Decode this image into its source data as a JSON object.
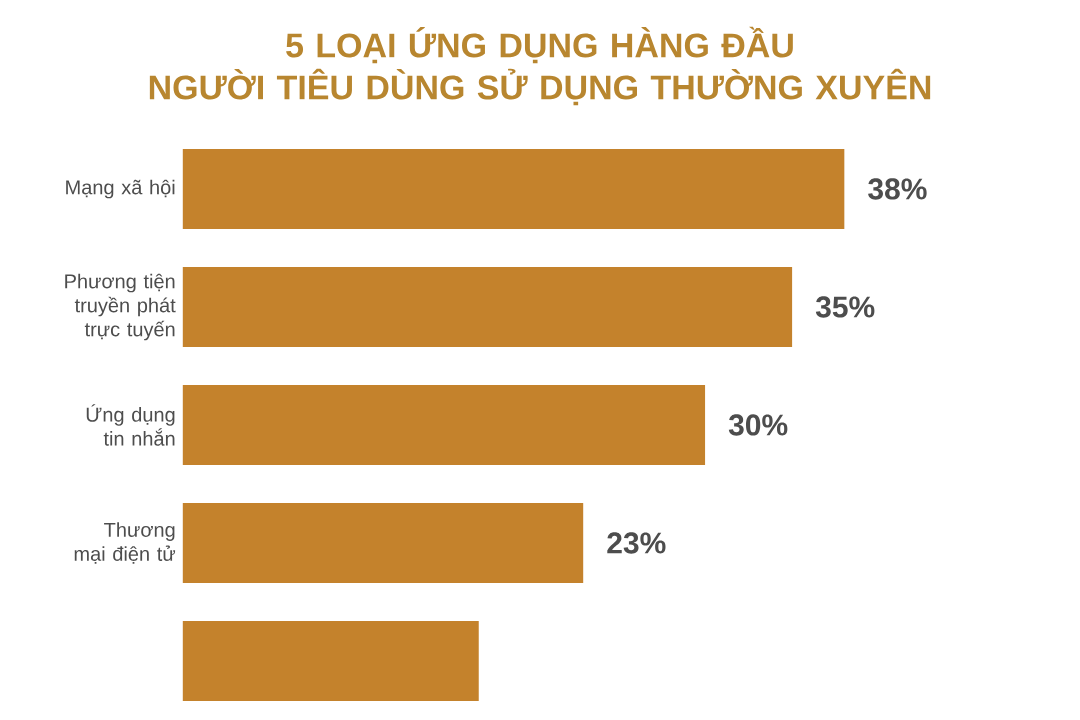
{
  "chart_data": {
    "type": "bar",
    "orientation": "horizontal",
    "title": "5 LOẠI ỨNG DỤNG HÀNG ĐẦU\nNGƯỜI TIÊU DÙNG SỬ DỤNG THƯỜNG XUYÊN",
    "categories": [
      "Mạng xã hội",
      "Phương tiện truyền phát trực tuyến",
      "Ứng dụng tin nhắn",
      "Thương mại điện tử",
      null
    ],
    "values": [
      38,
      35,
      30,
      23,
      17
    ],
    "value_labels": [
      "38%",
      "35%",
      "30%",
      "23%",
      null
    ],
    "color": "#c4822c"
  }
}
